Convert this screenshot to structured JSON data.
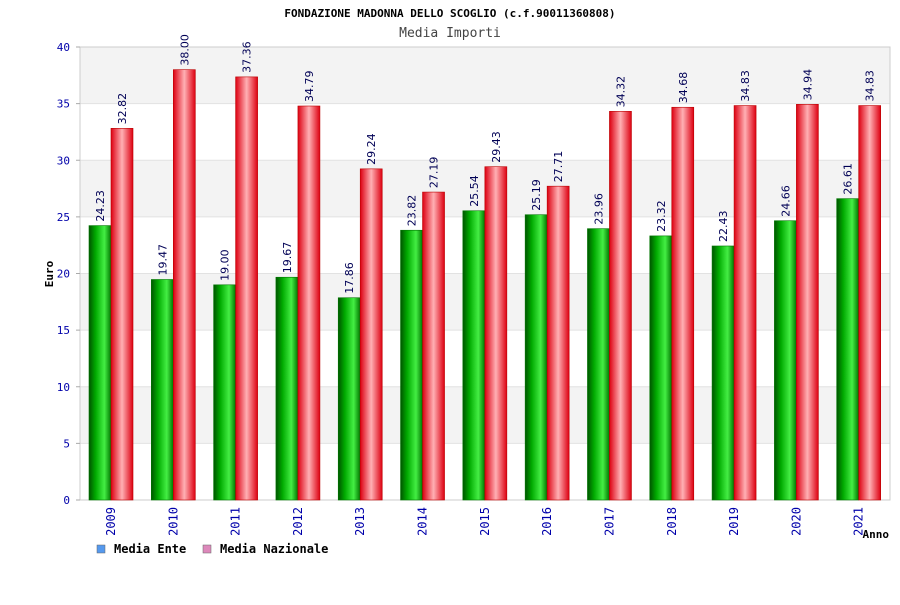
{
  "colors": {
    "ente": "#00aa00",
    "nazionale": "#dd0011",
    "legend_ente": "#5599ee",
    "legend_nazionale": "#dd88bb",
    "band": "#f3f3f3",
    "grid": "#e2e2e2",
    "axis_text": "#0000aa"
  },
  "chart_data": {
    "type": "bar",
    "title": "FONDAZIONE MADONNA DELLO SCOGLIO (c.f.90011360808)",
    "subtitle": "Media Importi",
    "xlabel": "Anno",
    "ylabel": "Euro",
    "ylim": [
      0,
      40
    ],
    "yticks": [
      "0",
      "5",
      "10",
      "15",
      "20",
      "25",
      "30",
      "35",
      "40"
    ],
    "categories": [
      "2009",
      "2010",
      "2011",
      "2012",
      "2013",
      "2014",
      "2015",
      "2016",
      "2017",
      "2018",
      "2019",
      "2020",
      "2021"
    ],
    "series": [
      {
        "name": "Media Ente",
        "values": [
          24.23,
          19.47,
          19.0,
          19.67,
          17.86,
          23.82,
          25.54,
          25.19,
          23.96,
          23.32,
          22.43,
          24.66,
          26.61
        ],
        "labels": [
          "24.23",
          "19.47",
          "19.00",
          "19.67",
          "17.86",
          "23.82",
          "25.54",
          "25.19",
          "23.96",
          "23.32",
          "22.43",
          "24.66",
          "26.61"
        ]
      },
      {
        "name": "Media Nazionale",
        "values": [
          32.82,
          38.0,
          37.36,
          34.79,
          29.24,
          27.19,
          29.43,
          27.71,
          34.32,
          34.68,
          34.83,
          34.94,
          34.83
        ],
        "labels": [
          "32.82",
          "38.00",
          "37.36",
          "34.79",
          "29.24",
          "27.19",
          "29.43",
          "27.71",
          "34.32",
          "34.68",
          "34.83",
          "34.94",
          "34.83"
        ]
      }
    ],
    "grid": true,
    "legend_position": "bottom-left"
  }
}
